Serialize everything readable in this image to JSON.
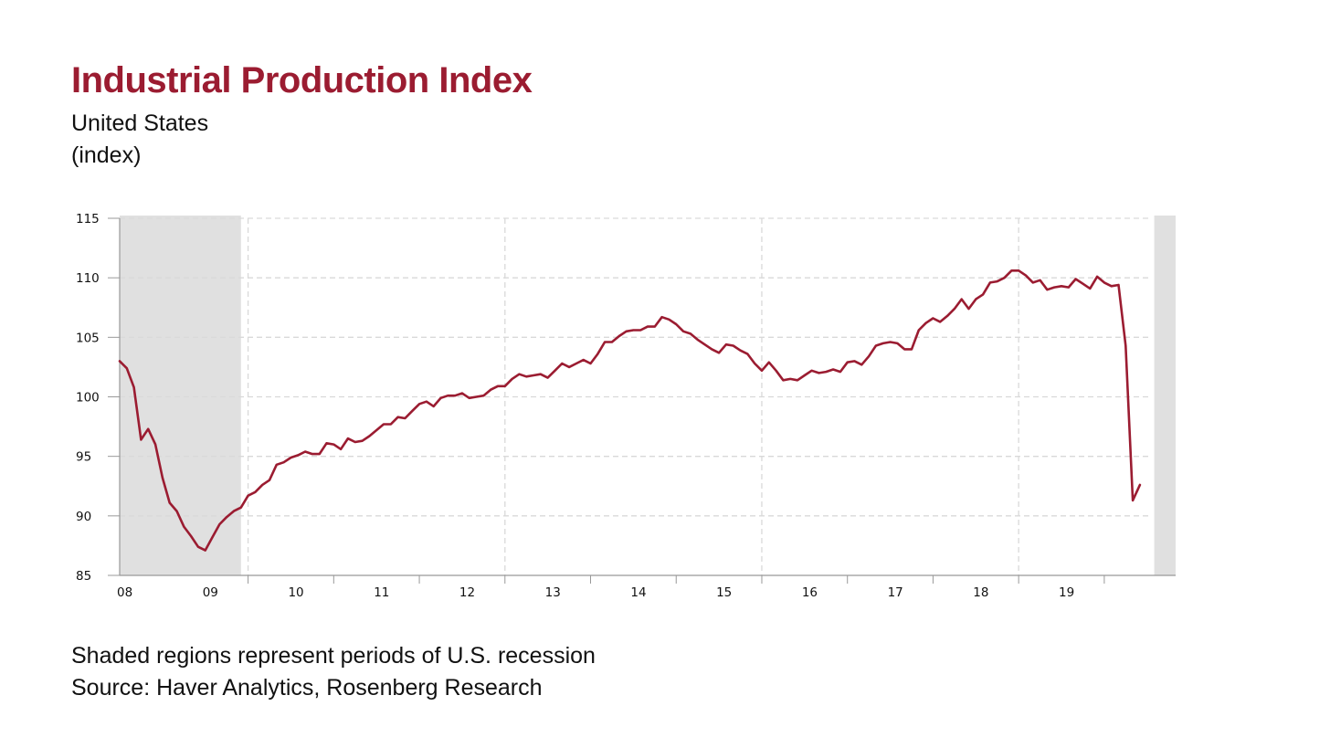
{
  "title": "Industrial Production Index",
  "subtitle": "United States",
  "unit_label": "(index)",
  "footnote": "Shaded regions represent periods of U.S. recession",
  "source": "Source: Haver Analytics, Rosenberg Research",
  "colors": {
    "title": "#9b1c31",
    "line": "#9b1c31",
    "recession_shade": "#e0e0e0",
    "grid": "#d9d9d9",
    "axis": "#999999"
  },
  "chart_data": {
    "type": "line",
    "title": "Industrial Production Index",
    "subtitle": "United States",
    "ylabel": "(index)",
    "xlabel": "",
    "ylim": [
      85,
      115
    ],
    "xlim": [
      "2008-01",
      "2020-05"
    ],
    "y_ticks": [
      85,
      90,
      95,
      100,
      105,
      110,
      115
    ],
    "x_ticks": [
      {
        "label": "08",
        "date": "2008-01"
      },
      {
        "label": "09",
        "date": "2009-01"
      },
      {
        "label": "10",
        "date": "2010-01"
      },
      {
        "label": "11",
        "date": "2011-01"
      },
      {
        "label": "12",
        "date": "2012-01"
      },
      {
        "label": "13",
        "date": "2013-01"
      },
      {
        "label": "14",
        "date": "2014-01"
      },
      {
        "label": "15",
        "date": "2015-01"
      },
      {
        "label": "16",
        "date": "2016-01"
      },
      {
        "label": "17",
        "date": "2017-01"
      },
      {
        "label": "18",
        "date": "2018-01"
      },
      {
        "label": "19",
        "date": "2019-01"
      }
    ],
    "grid": true,
    "recessions": [
      {
        "start": "2008-01",
        "end": "2009-06"
      },
      {
        "start": "2020-02",
        "end": "2020-05"
      }
    ],
    "series": [
      {
        "start": "2008-01",
        "frequency": "monthly",
        "values": [
          103.0,
          102.4,
          100.8,
          96.4,
          97.3,
          96.0,
          93.2,
          91.1,
          90.4,
          89.1,
          88.3,
          87.4,
          87.1,
          88.2,
          89.3,
          89.9,
          90.4,
          90.7,
          91.7,
          92.0,
          92.6,
          93.0,
          94.3,
          94.5,
          94.9,
          95.1,
          95.4,
          95.2,
          95.2,
          96.1,
          96.0,
          95.6,
          96.5,
          96.2,
          96.3,
          96.7,
          97.2,
          97.7,
          97.7,
          98.3,
          98.2,
          98.8,
          99.4,
          99.6,
          99.2,
          99.9,
          100.1,
          100.1,
          100.3,
          99.9,
          100.0,
          100.1,
          100.6,
          100.9,
          100.9,
          101.5,
          101.9,
          101.7,
          101.8,
          101.9,
          101.6,
          102.2,
          102.8,
          102.5,
          102.8,
          103.1,
          102.8,
          103.6,
          104.6,
          104.6,
          105.1,
          105.5,
          105.6,
          105.6,
          105.9,
          105.9,
          106.7,
          106.5,
          106.1,
          105.5,
          105.3,
          104.8,
          104.4,
          104.0,
          103.7,
          104.4,
          104.3,
          103.9,
          103.6,
          102.8,
          102.2,
          102.9,
          102.2,
          101.4,
          101.5,
          101.4,
          101.8,
          102.2,
          102.0,
          102.1,
          102.3,
          102.1,
          102.9,
          103.0,
          102.7,
          103.4,
          104.3,
          104.5,
          104.6,
          104.5,
          104.0,
          104.0,
          105.6,
          106.2,
          106.6,
          106.3,
          106.8,
          107.4,
          108.2,
          107.4,
          108.2,
          108.6,
          109.6,
          109.7,
          110.0,
          110.6,
          110.6,
          110.2,
          109.6,
          109.8,
          109.0,
          109.2,
          109.3,
          109.2,
          109.9,
          109.5,
          109.1,
          110.1,
          109.6,
          109.3,
          109.4,
          104.3,
          91.3,
          92.6
        ]
      }
    ]
  }
}
